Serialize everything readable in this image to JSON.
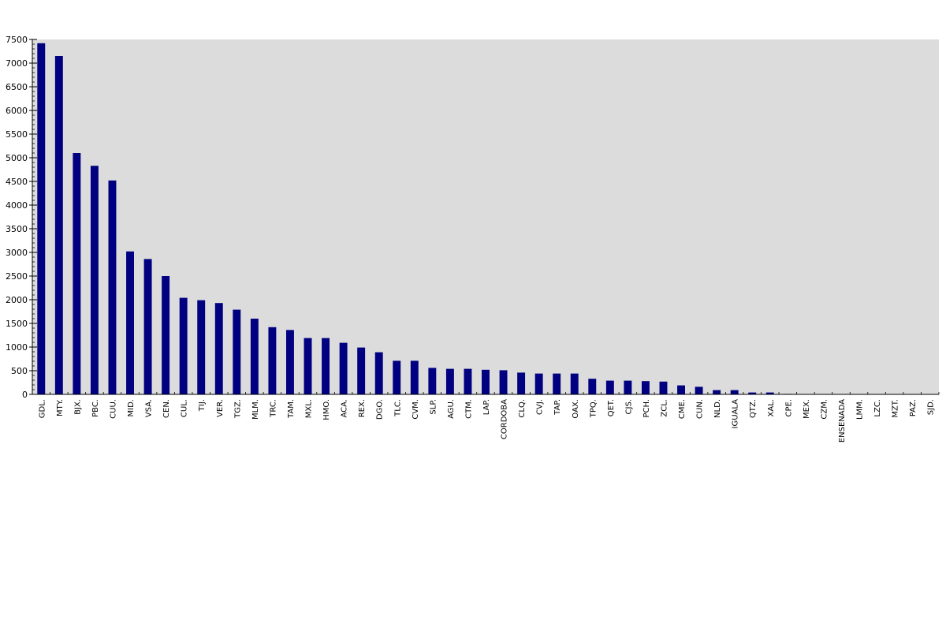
{
  "chart_data": {
    "type": "bar",
    "title": "",
    "xlabel": "",
    "ylabel": "",
    "ylim": [
      0,
      7500
    ],
    "yticks": [
      0,
      500,
      1000,
      1500,
      2000,
      2500,
      3000,
      3500,
      4000,
      4500,
      5000,
      5500,
      6000,
      6500,
      7000,
      7500
    ],
    "grid": false,
    "legend": "none",
    "bar_color": "#000080",
    "plot_background": "#dcdcdc",
    "categories": [
      "GDL.",
      "MTY.",
      "BJX.",
      "PBC.",
      "CUU.",
      "MID.",
      "VSA.",
      "CEN.",
      "CUL.",
      "TIJ.",
      "VER.",
      "TGZ.",
      "MLM.",
      "TRC.",
      "TAM.",
      "MXL.",
      "HMO.",
      "ACA.",
      "REX.",
      "DGO.",
      "TLC.",
      "CVM.",
      "SLP.",
      "AGU.",
      "CTM.",
      "LAP.",
      "CORDOBA",
      "CLQ.",
      "CVJ.",
      "TAP.",
      "OAX.",
      "TPQ.",
      "QET.",
      "CJS.",
      "PCH.",
      "ZCL.",
      "CME.",
      "CUN.",
      "NLD.",
      "IGUALA",
      "QTZ.",
      "XAL.",
      "CPE.",
      "MEX.",
      "CZM.",
      "ENSENADA",
      "LMM.",
      "LZC.",
      "MZT.",
      "PAZ.",
      "SJD."
    ],
    "values": [
      7420,
      7150,
      5100,
      4830,
      4520,
      3020,
      2860,
      2500,
      2040,
      1990,
      1930,
      1790,
      1600,
      1420,
      1360,
      1190,
      1190,
      1090,
      990,
      890,
      710,
      710,
      560,
      540,
      540,
      520,
      510,
      460,
      440,
      440,
      440,
      330,
      290,
      290,
      280,
      270,
      190,
      160,
      90,
      90,
      40,
      40,
      10,
      0,
      0,
      0,
      0,
      0,
      0,
      0,
      0
    ]
  }
}
